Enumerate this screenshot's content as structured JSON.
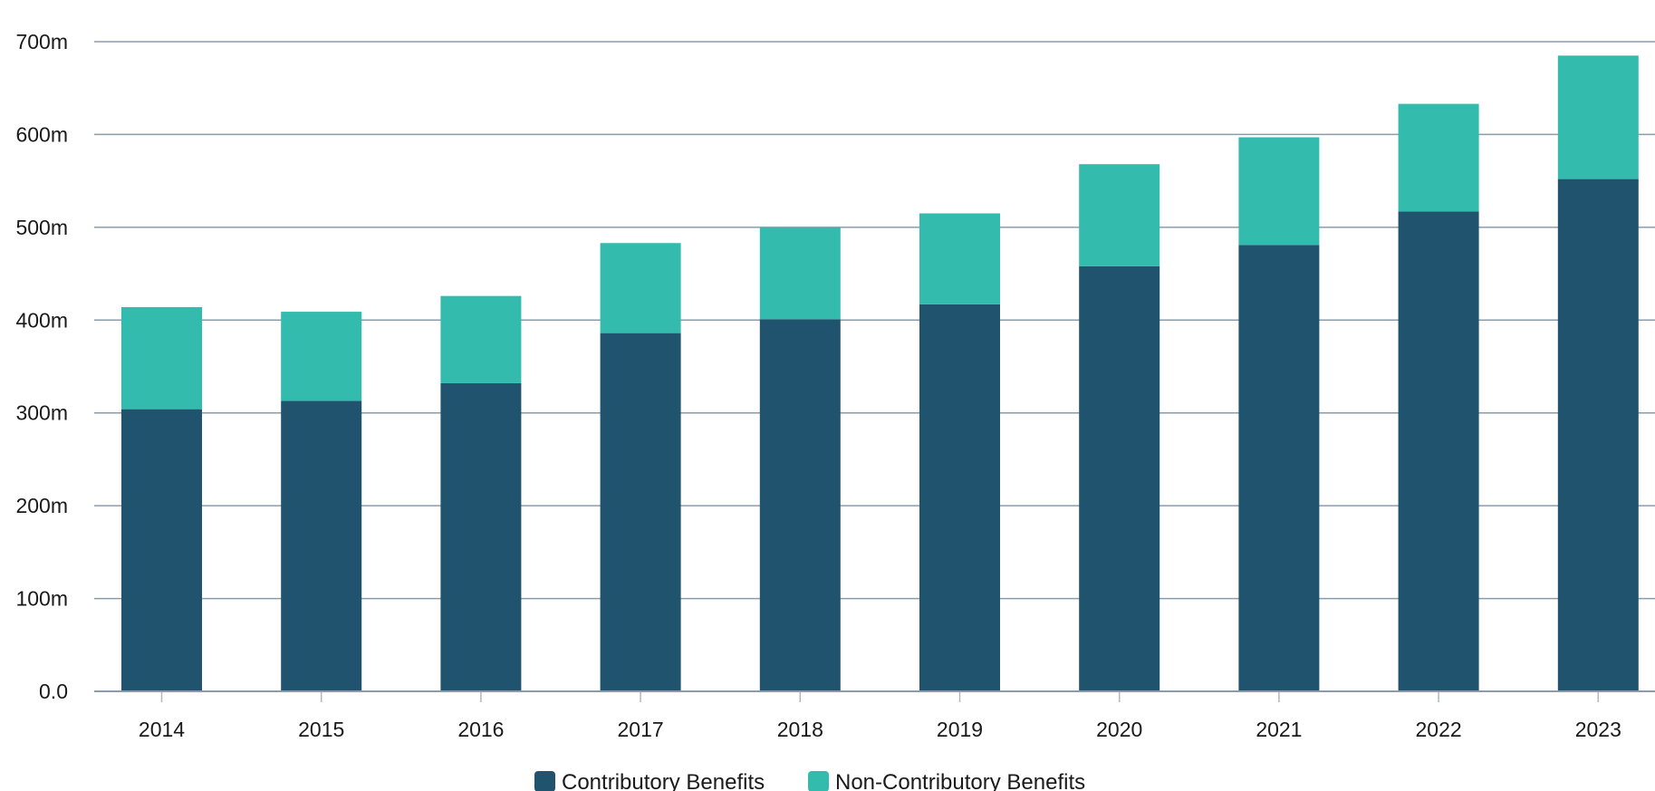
{
  "chart_data": {
    "type": "bar",
    "stacked": true,
    "categories": [
      "2014",
      "2015",
      "2016",
      "2017",
      "2018",
      "2019",
      "2020",
      "2021",
      "2022",
      "2023"
    ],
    "series": [
      {
        "name": "Contributory Benefits",
        "color": "#20536e",
        "values": [
          304,
          313,
          332,
          386,
          401,
          417,
          458,
          481,
          517,
          552
        ]
      },
      {
        "name": "Non-Contributory Benefits",
        "color": "#33bbad",
        "values": [
          110,
          96,
          94,
          97,
          99,
          98,
          110,
          116,
          116,
          133
        ]
      }
    ],
    "yticks": [
      {
        "value": 0,
        "label": "0.0"
      },
      {
        "value": 100,
        "label": "100m"
      },
      {
        "value": 200,
        "label": "200m"
      },
      {
        "value": 300,
        "label": "300m"
      },
      {
        "value": 400,
        "label": "400m"
      },
      {
        "value": 500,
        "label": "500m"
      },
      {
        "value": 600,
        "label": "600m"
      },
      {
        "value": 700,
        "label": "700m"
      }
    ],
    "ylim": [
      0,
      700
    ],
    "grid": true,
    "legend_position": "bottom-center",
    "gridline_color": "#8a9cac"
  }
}
